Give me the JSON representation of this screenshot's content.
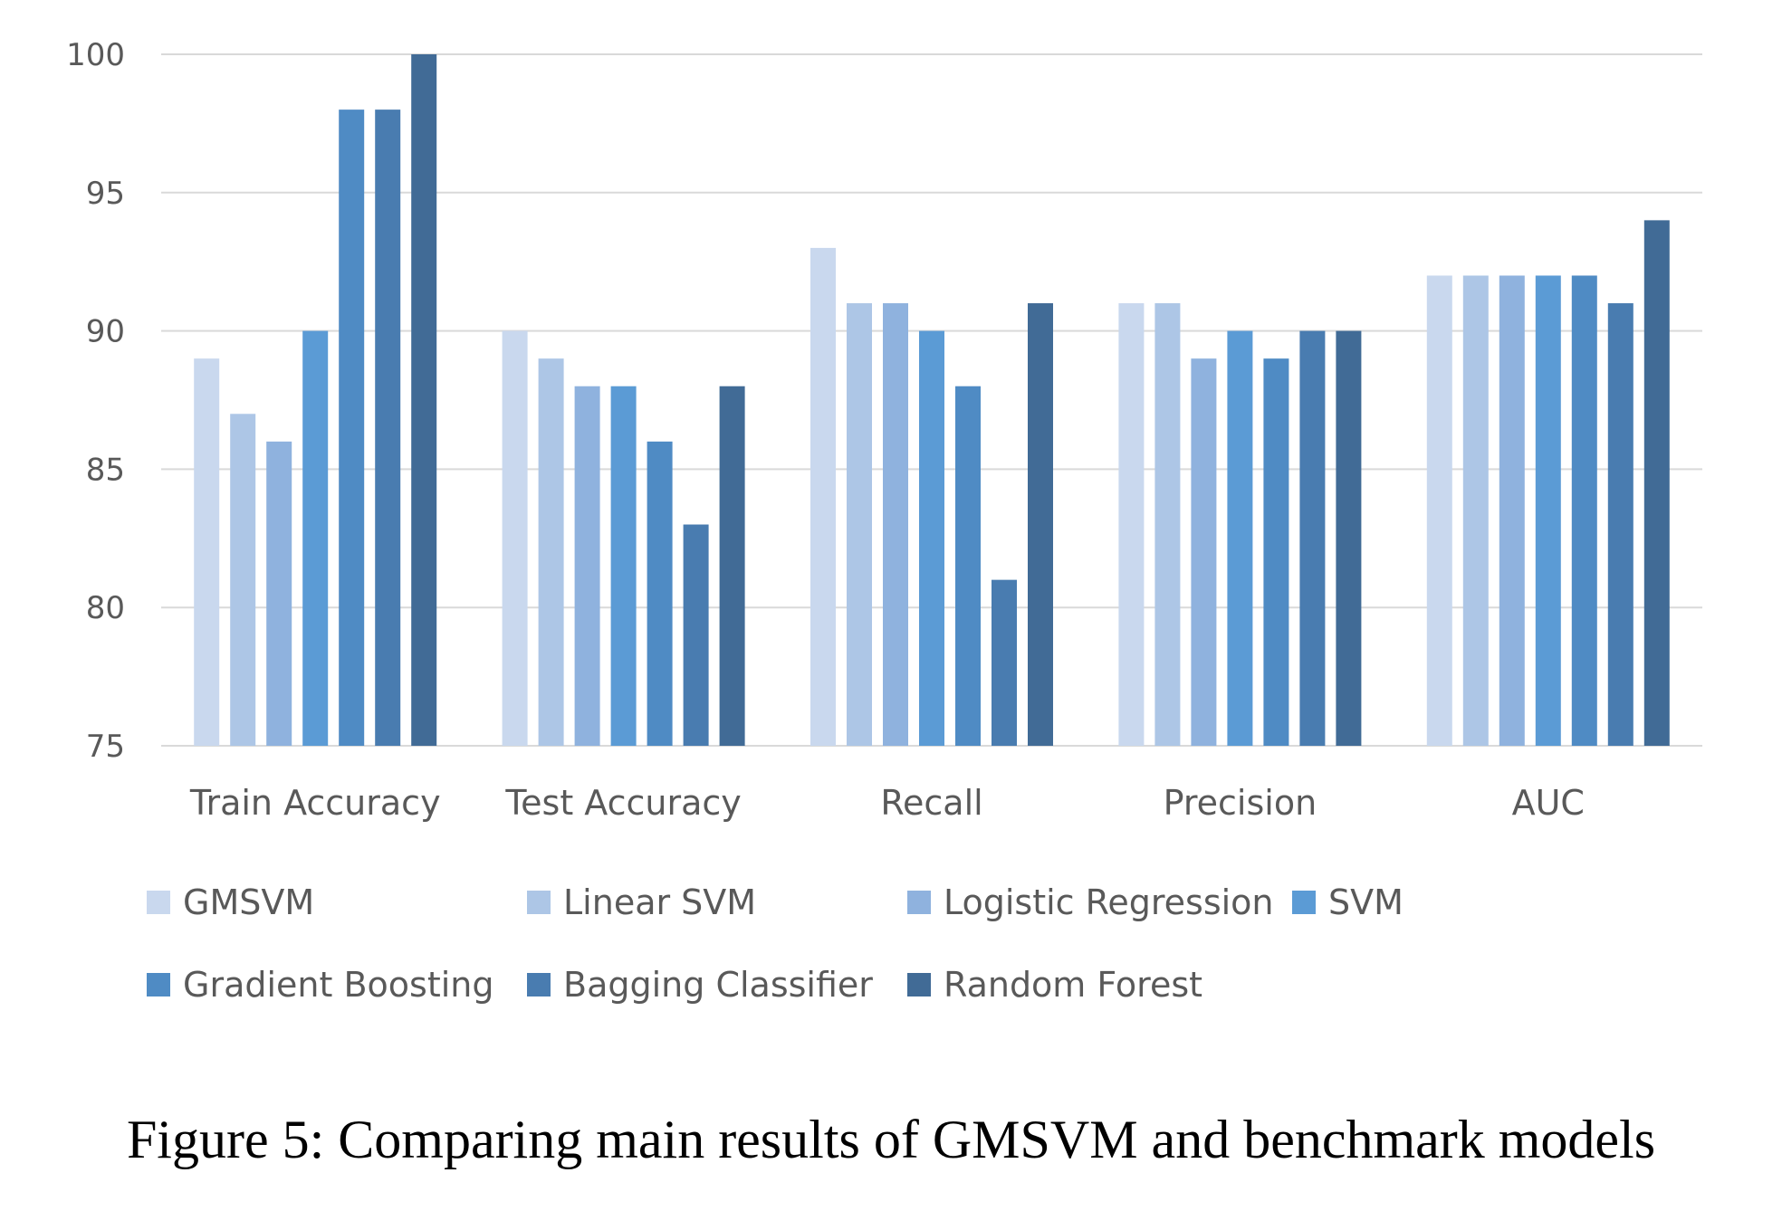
{
  "chart_data": {
    "type": "bar",
    "categories": [
      "Train Accuracy",
      "Test Accuracy",
      "Recall",
      "Precision",
      "AUC"
    ],
    "series": [
      {
        "name": "GMSVM",
        "color": "#c9d8ee",
        "values": [
          89,
          90,
          93,
          91,
          92
        ]
      },
      {
        "name": "Linear SVM",
        "color": "#adc6e6",
        "values": [
          87,
          89,
          91,
          91,
          92
        ]
      },
      {
        "name": "Logistic Regression",
        "color": "#8fb2de",
        "values": [
          86,
          88,
          91,
          89,
          92
        ]
      },
      {
        "name": "SVM",
        "color": "#5b9bd5",
        "values": [
          90,
          88,
          90,
          90,
          92
        ]
      },
      {
        "name": "Gradient Boosting",
        "color": "#4f8bc4",
        "values": [
          98,
          86,
          88,
          89,
          92
        ]
      },
      {
        "name": "Bagging Classifier",
        "color": "#497cb0",
        "values": [
          98,
          83,
          81,
          90,
          91
        ]
      },
      {
        "name": "Random Forest",
        "color": "#416b96",
        "values": [
          100,
          88,
          91,
          90,
          94
        ]
      }
    ],
    "ylim": [
      75,
      100
    ],
    "yticks": [
      75,
      80,
      85,
      90,
      95,
      100
    ],
    "grid": true,
    "legend_placement": "bottom"
  },
  "caption": "Figure 5: Comparing main results of GMSVM and benchmark models"
}
